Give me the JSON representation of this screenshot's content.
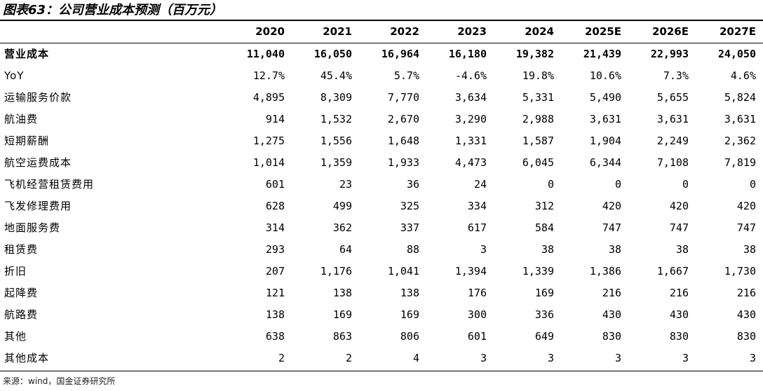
{
  "title": "图表63：公司营业成本预测（百万元）",
  "source": "来源：wind，国金证券研究所",
  "table": {
    "header": [
      "",
      "2020",
      "2021",
      "2022",
      "2023",
      "2024",
      "2025E",
      "2026E",
      "2027E"
    ],
    "rows": [
      {
        "label": "营业成本",
        "bold": true,
        "values": [
          "11,040",
          "16,050",
          "16,964",
          "16,180",
          "19,382",
          "21,439",
          "22,993",
          "24,050"
        ]
      },
      {
        "label": "YoY",
        "bold": false,
        "values": [
          "12.7%",
          "45.4%",
          "5.7%",
          "-4.6%",
          "19.8%",
          "10.6%",
          "7.3%",
          "4.6%"
        ]
      },
      {
        "label": "运输服务价款",
        "bold": false,
        "values": [
          "4,895",
          "8,309",
          "7,770",
          "3,634",
          "5,331",
          "5,490",
          "5,655",
          "5,824"
        ]
      },
      {
        "label": "航油费",
        "bold": false,
        "values": [
          "914",
          "1,532",
          "2,670",
          "3,290",
          "2,988",
          "3,631",
          "3,631",
          "3,631"
        ]
      },
      {
        "label": "短期薪酬",
        "bold": false,
        "values": [
          "1,275",
          "1,556",
          "1,648",
          "1,331",
          "1,587",
          "1,904",
          "2,249",
          "2,362"
        ]
      },
      {
        "label": "航空运费成本",
        "bold": false,
        "values": [
          "1,014",
          "1,359",
          "1,933",
          "4,473",
          "6,045",
          "6,344",
          "7,108",
          "7,819"
        ]
      },
      {
        "label": "飞机经营租赁费用",
        "bold": false,
        "values": [
          "601",
          "23",
          "36",
          "24",
          "0",
          "0",
          "0",
          "0"
        ]
      },
      {
        "label": "飞发修理费用",
        "bold": false,
        "values": [
          "628",
          "499",
          "325",
          "334",
          "312",
          "420",
          "420",
          "420"
        ]
      },
      {
        "label": "地面服务费",
        "bold": false,
        "values": [
          "314",
          "362",
          "337",
          "617",
          "584",
          "747",
          "747",
          "747"
        ]
      },
      {
        "label": "租赁费",
        "bold": false,
        "values": [
          "293",
          "64",
          "88",
          "3",
          "38",
          "38",
          "38",
          "38"
        ]
      },
      {
        "label": "折旧",
        "bold": false,
        "values": [
          "207",
          "1,176",
          "1,041",
          "1,394",
          "1,339",
          "1,386",
          "1,667",
          "1,730"
        ]
      },
      {
        "label": "起降费",
        "bold": false,
        "values": [
          "121",
          "138",
          "138",
          "176",
          "169",
          "216",
          "216",
          "216"
        ]
      },
      {
        "label": "航路费",
        "bold": false,
        "values": [
          "138",
          "169",
          "169",
          "300",
          "336",
          "430",
          "430",
          "430"
        ]
      },
      {
        "label": "其他",
        "bold": false,
        "values": [
          "638",
          "863",
          "806",
          "601",
          "649",
          "830",
          "830",
          "830"
        ]
      },
      {
        "label": "其他成本",
        "bold": false,
        "values": [
          "2",
          "2",
          "4",
          "3",
          "3",
          "3",
          "3",
          "3"
        ]
      }
    ]
  }
}
